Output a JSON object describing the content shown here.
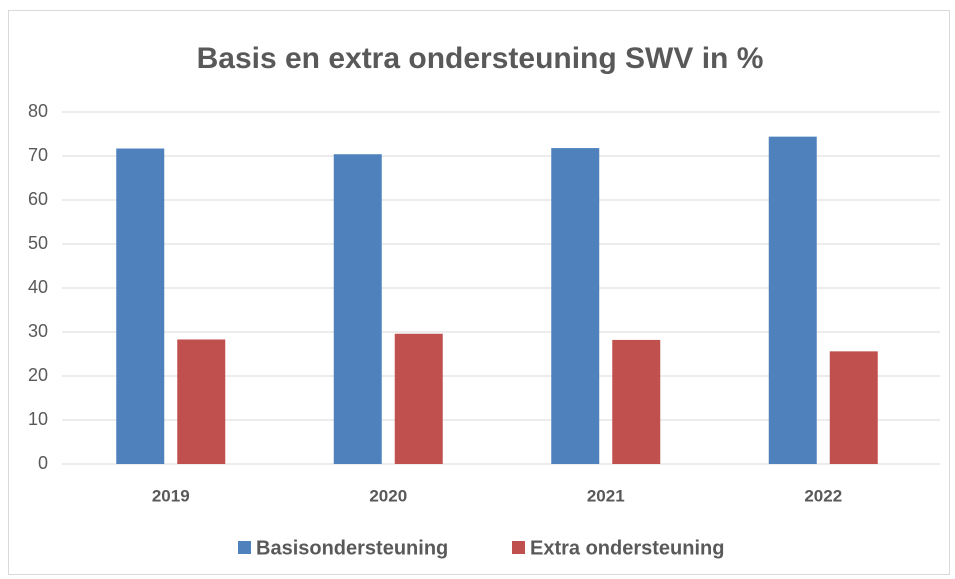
{
  "chart_data": {
    "type": "bar",
    "title": "Basis en extra ondersteuning SWV in %",
    "categories": [
      "2019",
      "2020",
      "2021",
      "2022"
    ],
    "series": [
      {
        "name": "Basisondersteuning",
        "color": "#4f81bd",
        "values": [
          71.7,
          70.4,
          71.8,
          74.4
        ]
      },
      {
        "name": "Extra ondersteuning",
        "color": "#c0504d",
        "values": [
          28.3,
          29.6,
          28.2,
          25.6
        ]
      }
    ],
    "ylim": [
      0,
      80
    ],
    "yticks": [
      0,
      10,
      20,
      30,
      40,
      50,
      60,
      70,
      80
    ],
    "grid": true,
    "legend": "bottom"
  }
}
